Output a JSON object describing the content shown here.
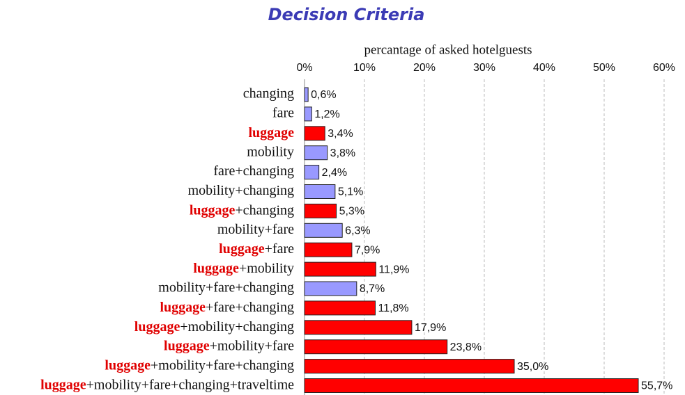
{
  "chart_data": {
    "type": "hbar",
    "title": "Decision Criteria",
    "x_label": "percantage of asked hotelguests",
    "categories": [
      "changing",
      "fare",
      "luggage",
      "mobility",
      "fare+changing",
      "mobility+changing",
      "luggage+changing",
      "mobility+fare",
      "luggage+fare",
      "luggage+mobility",
      "mobility+fare+changing",
      "luggage+fare+changing",
      "luggage+mobility+changing",
      "luggage+mobility+fare",
      "luggage+mobility+fare+changing",
      "luggage+mobility+fare+changing+traveltime"
    ],
    "values": [
      0.6,
      1.2,
      3.4,
      3.8,
      2.4,
      5.1,
      5.3,
      6.3,
      7.9,
      11.9,
      8.7,
      11.8,
      17.9,
      23.8,
      35.0,
      55.7
    ],
    "value_labels": [
      "0,6%",
      "1,2%",
      "3,4%",
      "3,8%",
      "2,4%",
      "5,1%",
      "5,3%",
      "6,3%",
      "7,9%",
      "11,9%",
      "8,7%",
      "11,8%",
      "17,9%",
      "23,8%",
      "35,0%",
      "55,7%"
    ],
    "colors": [
      "#9999ff",
      "#9999ff",
      "#ff0000",
      "#9999ff",
      "#9999ff",
      "#9999ff",
      "#ff0000",
      "#9999ff",
      "#ff0000",
      "#ff0000",
      "#9999ff",
      "#ff0000",
      "#ff0000",
      "#ff0000",
      "#ff0000",
      "#ff0000"
    ],
    "xlim": [
      0,
      60
    ],
    "xticks": [
      {
        "value": 0,
        "label": "0%"
      },
      {
        "value": 10,
        "label": "10%"
      },
      {
        "value": 20,
        "label": "20%"
      },
      {
        "value": 30,
        "label": "30%"
      },
      {
        "value": 40,
        "label": "40%"
      },
      {
        "value": 50,
        "label": "50%"
      },
      {
        "value": 60,
        "label": "60%"
      }
    ],
    "grid": true
  }
}
